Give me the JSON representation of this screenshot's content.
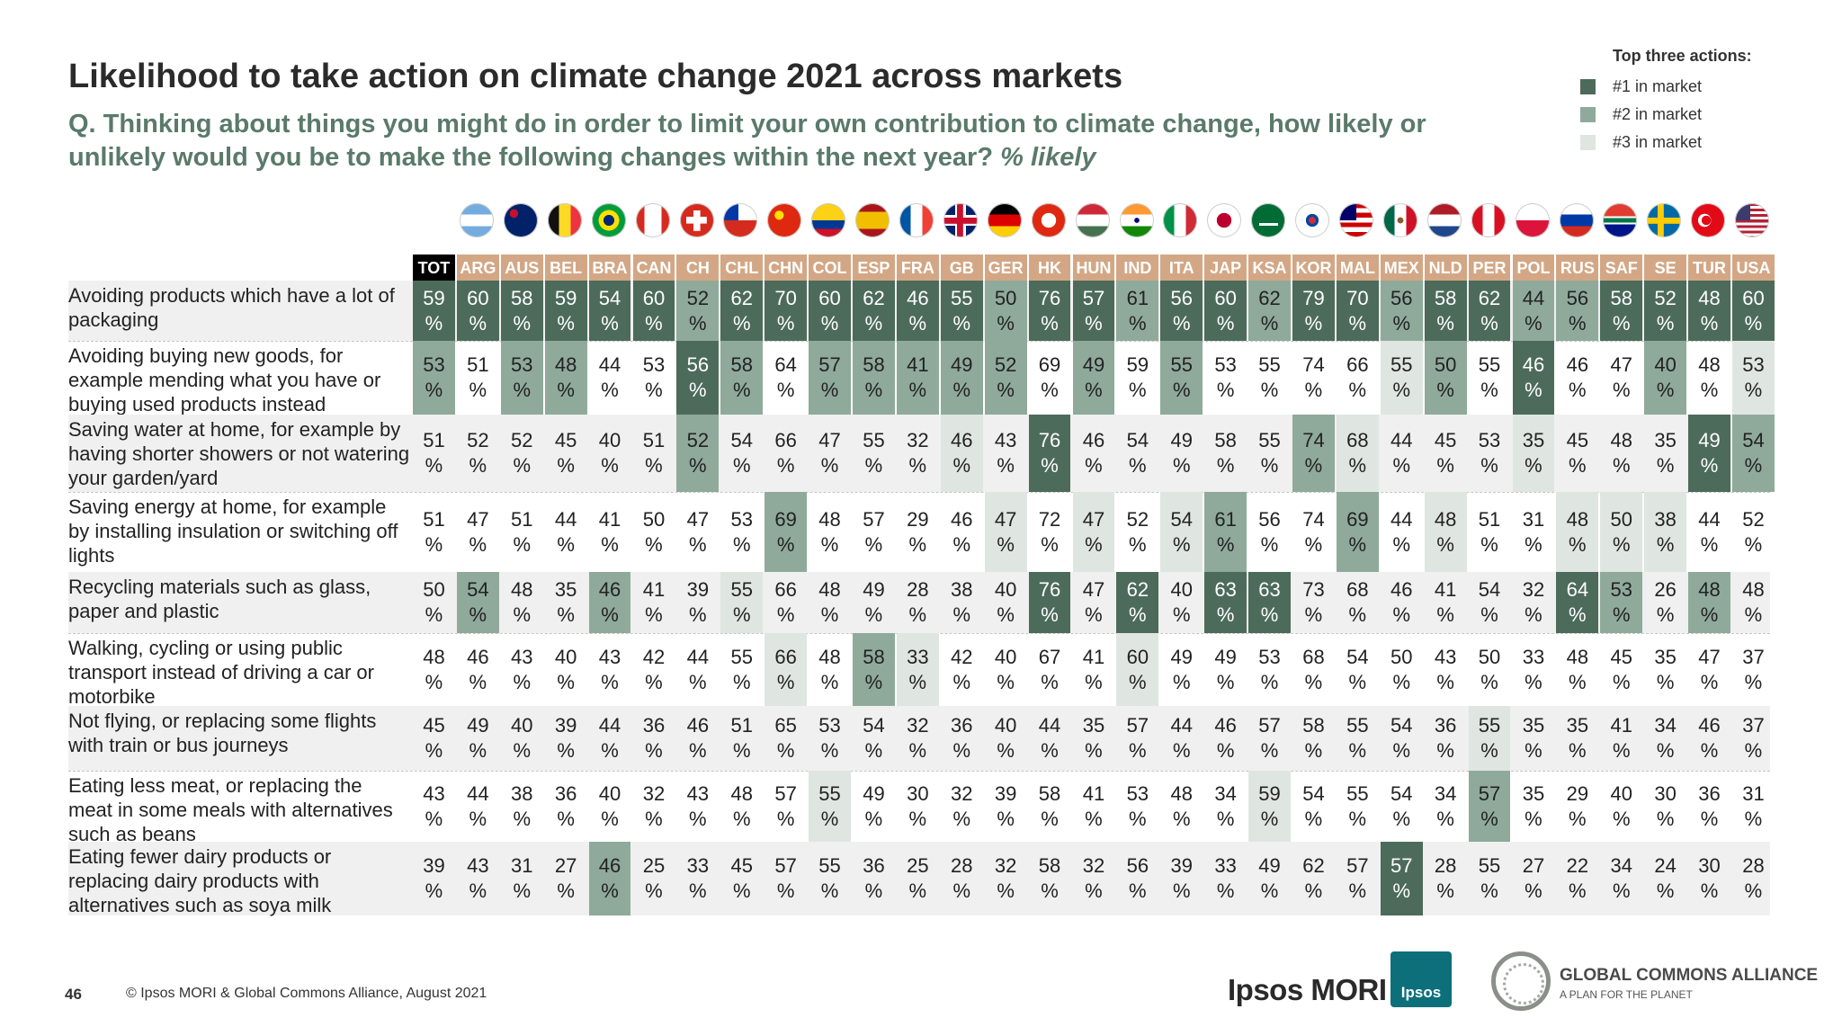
{
  "title": "Likelihood to take action on climate change 2021 across markets",
  "question": "Q. Thinking about things you might do in order to limit your own contribution to climate change, how likely or unlikely would you be to make the following changes within the next year?",
  "question_emph": "% likely",
  "legend": {
    "title": "Top three actions:",
    "items": [
      {
        "label": "#1 in market",
        "color": "#4d6b5b"
      },
      {
        "label": "#2  in market",
        "color": "#8faa9b"
      },
      {
        "label": "#3  in market",
        "color": "#dfe6e2"
      }
    ]
  },
  "colors": {
    "tot_header": "#000000",
    "market_header": "#d3a785",
    "row_alt": "#f0f0f0",
    "rank1": "#4d6b5b",
    "rank2": "#8faa9b",
    "rank3": "#dfe6e2"
  },
  "flags": [
    "argentina-flag-icon",
    "australia-flag-icon",
    "belgium-flag-icon",
    "brazil-flag-icon",
    "canada-flag-icon",
    "switzerland-flag-icon",
    "chile-flag-icon",
    "china-flag-icon",
    "colombia-flag-icon",
    "spain-flag-icon",
    "france-flag-icon",
    "great-britain-flag-icon",
    "germany-flag-icon",
    "hong-kong-flag-icon",
    "hungary-flag-icon",
    "india-flag-icon",
    "italy-flag-icon",
    "japan-flag-icon",
    "saudi-arabia-flag-icon",
    "south-korea-flag-icon",
    "malaysia-flag-icon",
    "mexico-flag-icon",
    "netherlands-flag-icon",
    "peru-flag-icon",
    "poland-flag-icon",
    "russia-flag-icon",
    "south-africa-flag-icon",
    "sweden-flag-icon",
    "turkey-flag-icon",
    "usa-flag-icon"
  ],
  "footer": {
    "page": "46",
    "copyright": "© Ipsos MORI & Global Commons Alliance, August 2021",
    "ipsos_logo": "Ipsos MORI",
    "ipsos_badge": "Ipsos",
    "gca_name": "GLOBAL COMMONS ALLIANCE",
    "gca_tagline": "A PLAN FOR THE PLANET"
  },
  "chart_data": {
    "type": "table",
    "unit": "%",
    "columns": [
      "TOT",
      "ARG",
      "AUS",
      "BEL",
      "BRA",
      "CAN",
      "CH",
      "CHL",
      "CHN",
      "COL",
      "ESP",
      "FRA",
      "GB",
      "GER",
      "HK",
      "HUN",
      "IND",
      "ITA",
      "JAP",
      "KSA",
      "KOR",
      "MAL",
      "MEX",
      "NLD",
      "PER",
      "POL",
      "RUS",
      "SAF",
      "SE",
      "TUR",
      "USA"
    ],
    "rows": [
      {
        "label": "Avoiding products which have a lot of packaging",
        "values": [
          59,
          60,
          58,
          59,
          54,
          60,
          52,
          62,
          70,
          60,
          62,
          46,
          55,
          50,
          76,
          57,
          61,
          56,
          60,
          62,
          79,
          70,
          56,
          58,
          62,
          44,
          56,
          58,
          52,
          48,
          60
        ],
        "ranks": [
          1,
          1,
          1,
          1,
          1,
          1,
          2,
          1,
          1,
          1,
          1,
          1,
          1,
          2,
          1,
          1,
          2,
          1,
          1,
          2,
          1,
          1,
          2,
          1,
          1,
          2,
          2,
          1,
          1,
          1,
          1
        ]
      },
      {
        "label": "Avoiding buying new goods, for example mending what you have or buying used products instead",
        "values": [
          53,
          51,
          53,
          48,
          44,
          53,
          56,
          58,
          64,
          57,
          58,
          41,
          49,
          52,
          69,
          49,
          59,
          55,
          53,
          55,
          74,
          66,
          55,
          50,
          55,
          46,
          46,
          47,
          40,
          48,
          53
        ],
        "ranks": [
          2,
          0,
          2,
          2,
          0,
          0,
          1,
          2,
          0,
          2,
          2,
          2,
          2,
          2,
          0,
          2,
          0,
          2,
          0,
          0,
          0,
          0,
          3,
          2,
          0,
          1,
          0,
          0,
          2,
          0,
          3
        ]
      },
      {
        "label": "Saving water at home, for example by having shorter showers or not watering your garden/yard",
        "values": [
          51,
          52,
          52,
          45,
          40,
          51,
          52,
          54,
          66,
          47,
          55,
          32,
          46,
          43,
          76,
          46,
          54,
          49,
          58,
          55,
          74,
          68,
          44,
          45,
          53,
          35,
          45,
          48,
          35,
          49,
          54
        ],
        "ranks": [
          0,
          0,
          0,
          0,
          0,
          0,
          2,
          0,
          0,
          0,
          0,
          0,
          3,
          0,
          1,
          0,
          0,
          0,
          0,
          0,
          2,
          3,
          0,
          0,
          0,
          3,
          0,
          0,
          0,
          1,
          2
        ]
      },
      {
        "label": "Saving energy at home, for example by installing insulation or switching off lights",
        "values": [
          51,
          47,
          51,
          44,
          41,
          50,
          47,
          53,
          69,
          48,
          57,
          29,
          46,
          47,
          72,
          47,
          52,
          54,
          61,
          56,
          74,
          69,
          44,
          48,
          51,
          31,
          48,
          50,
          38,
          44,
          52
        ],
        "ranks": [
          0,
          0,
          0,
          0,
          0,
          0,
          0,
          0,
          2,
          0,
          0,
          0,
          0,
          3,
          0,
          3,
          0,
          3,
          2,
          0,
          0,
          2,
          0,
          3,
          0,
          0,
          3,
          3,
          3,
          0,
          0
        ]
      },
      {
        "label": "Recycling materials such as glass, paper and plastic",
        "values": [
          50,
          54,
          48,
          35,
          46,
          41,
          39,
          55,
          66,
          48,
          49,
          28,
          38,
          40,
          76,
          47,
          62,
          40,
          63,
          63,
          73,
          68,
          46,
          41,
          54,
          32,
          64,
          53,
          26,
          48,
          48
        ],
        "ranks": [
          0,
          2,
          0,
          0,
          2,
          0,
          0,
          3,
          0,
          0,
          0,
          0,
          0,
          0,
          1,
          0,
          1,
          0,
          1,
          1,
          0,
          0,
          0,
          0,
          0,
          0,
          1,
          2,
          0,
          2,
          0
        ]
      },
      {
        "label": "Walking, cycling or using public transport instead of driving a car or motorbike",
        "values": [
          48,
          46,
          43,
          40,
          43,
          42,
          44,
          55,
          66,
          48,
          58,
          33,
          42,
          40,
          67,
          41,
          60,
          49,
          49,
          53,
          68,
          54,
          50,
          43,
          50,
          33,
          48,
          45,
          35,
          47,
          37
        ],
        "ranks": [
          0,
          0,
          0,
          0,
          0,
          0,
          0,
          0,
          3,
          0,
          2,
          3,
          0,
          0,
          0,
          0,
          3,
          0,
          0,
          0,
          0,
          0,
          0,
          0,
          0,
          0,
          0,
          0,
          0,
          0,
          0
        ]
      },
      {
        "label": "Not flying, or replacing some flights with train or bus journeys",
        "values": [
          45,
          49,
          40,
          39,
          44,
          36,
          46,
          51,
          65,
          53,
          54,
          32,
          36,
          40,
          44,
          35,
          57,
          44,
          46,
          57,
          58,
          55,
          54,
          36,
          55,
          35,
          35,
          41,
          34,
          46,
          37
        ],
        "ranks": [
          0,
          0,
          0,
          0,
          0,
          0,
          0,
          0,
          0,
          0,
          0,
          0,
          0,
          0,
          0,
          0,
          0,
          0,
          0,
          0,
          0,
          0,
          0,
          0,
          3,
          0,
          0,
          0,
          0,
          0,
          0
        ]
      },
      {
        "label": "Eating less meat, or replacing the meat in some meals with alternatives such as beans",
        "values": [
          43,
          44,
          38,
          36,
          40,
          32,
          43,
          48,
          57,
          55,
          49,
          30,
          32,
          39,
          58,
          41,
          53,
          48,
          34,
          59,
          54,
          55,
          54,
          34,
          57,
          35,
          29,
          40,
          30,
          36,
          31
        ],
        "ranks": [
          0,
          0,
          0,
          0,
          0,
          0,
          0,
          0,
          0,
          3,
          0,
          0,
          0,
          0,
          0,
          0,
          0,
          0,
          0,
          3,
          0,
          0,
          0,
          0,
          2,
          0,
          0,
          0,
          0,
          0,
          0
        ]
      },
      {
        "label": "Eating fewer dairy products or replacing dairy products with alternatives such as soya milk",
        "values": [
          39,
          43,
          31,
          27,
          46,
          25,
          33,
          45,
          57,
          55,
          36,
          25,
          28,
          32,
          58,
          32,
          56,
          39,
          33,
          49,
          62,
          57,
          57,
          28,
          55,
          27,
          22,
          34,
          24,
          30,
          28
        ],
        "ranks": [
          0,
          0,
          0,
          0,
          2,
          0,
          0,
          0,
          0,
          0,
          0,
          0,
          0,
          0,
          0,
          0,
          0,
          0,
          0,
          0,
          0,
          0,
          1,
          0,
          0,
          0,
          0,
          0,
          0,
          0,
          0
        ]
      }
    ]
  }
}
